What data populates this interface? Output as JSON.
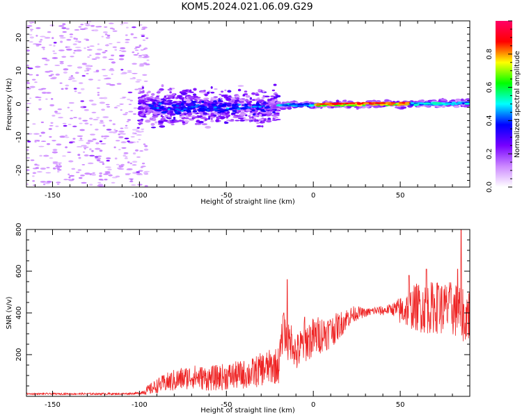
{
  "title": "KOM5.2024.021.06.09.G29",
  "chart_data": [
    {
      "type": "heatmap",
      "xlabel": "Height of straight line (km)",
      "ylabel": "Frequency (Hz)",
      "xlim": [
        -165,
        90
      ],
      "ylim": [
        -25,
        25
      ],
      "xticks": [
        -150,
        -100,
        -50,
        0,
        50
      ],
      "yticks": [
        -20,
        -10,
        0,
        10,
        20
      ],
      "description_of_signal": "scattered noise left of -100 km; a dispersed band near 0 Hz from -100 to -20 km; a narrow line at ~0 Hz from -20 to 90 km",
      "colorbar": {
        "label": "Normalized spectral amplitude",
        "range": [
          0,
          1
        ],
        "ticks": [
          0.0,
          0.2,
          0.4,
          0.6,
          0.8
        ],
        "colormap": [
          "#ffffff",
          "#cc88ff",
          "#7700ff",
          "#0000ff",
          "#00ffff",
          "#00ff00",
          "#ffff00",
          "#ff0000",
          "#ff0066"
        ]
      }
    },
    {
      "type": "line",
      "xlabel": "Height of straight line (km)",
      "ylabel": "SNR (v/v)",
      "xlim": [
        -165,
        90
      ],
      "ylim": [
        0,
        800
      ],
      "xticks": [
        -150,
        -100,
        -50,
        0,
        50
      ],
      "yticks": [
        200,
        400,
        600,
        800
      ],
      "color": "#ee2222",
      "x": [
        -165,
        -150,
        -130,
        -110,
        -100,
        -95,
        -90,
        -85,
        -80,
        -75,
        -70,
        -65,
        -60,
        -55,
        -50,
        -45,
        -40,
        -35,
        -30,
        -25,
        -20,
        -17,
        -15,
        -12,
        -10,
        -5,
        0,
        5,
        10,
        15,
        20,
        25,
        30,
        35,
        40,
        45,
        50,
        55,
        60,
        65,
        70,
        75,
        80,
        85,
        90
      ],
      "values": [
        12,
        12,
        12,
        12,
        15,
        30,
        50,
        65,
        75,
        85,
        95,
        90,
        85,
        90,
        95,
        100,
        105,
        110,
        130,
        140,
        150,
        330,
        250,
        270,
        200,
        260,
        280,
        300,
        310,
        340,
        380,
        400,
        400,
        410,
        410,
        420,
        410,
        420,
        430,
        420,
        430,
        420,
        420,
        400,
        390
      ],
      "spikes": [
        [
          -15,
          560
        ],
        [
          -17,
          400
        ],
        [
          -5,
          380
        ],
        [
          10,
          360
        ],
        [
          55,
          580
        ],
        [
          65,
          610
        ],
        [
          72,
          530
        ],
        [
          78,
          500
        ],
        [
          83,
          610
        ],
        [
          85,
          820
        ],
        [
          87,
          300
        ]
      ],
      "noise_amplitude": [
        [
          -165,
          4
        ],
        [
          -100,
          5
        ],
        [
          -95,
          25
        ],
        [
          -80,
          55
        ],
        [
          -60,
          60
        ],
        [
          -40,
          70
        ],
        [
          -20,
          90
        ],
        [
          0,
          100
        ],
        [
          10,
          80
        ],
        [
          20,
          50
        ],
        [
          30,
          20
        ],
        [
          45,
          25
        ],
        [
          50,
          70
        ],
        [
          60,
          120
        ],
        [
          75,
          130
        ],
        [
          90,
          140
        ]
      ]
    }
  ]
}
